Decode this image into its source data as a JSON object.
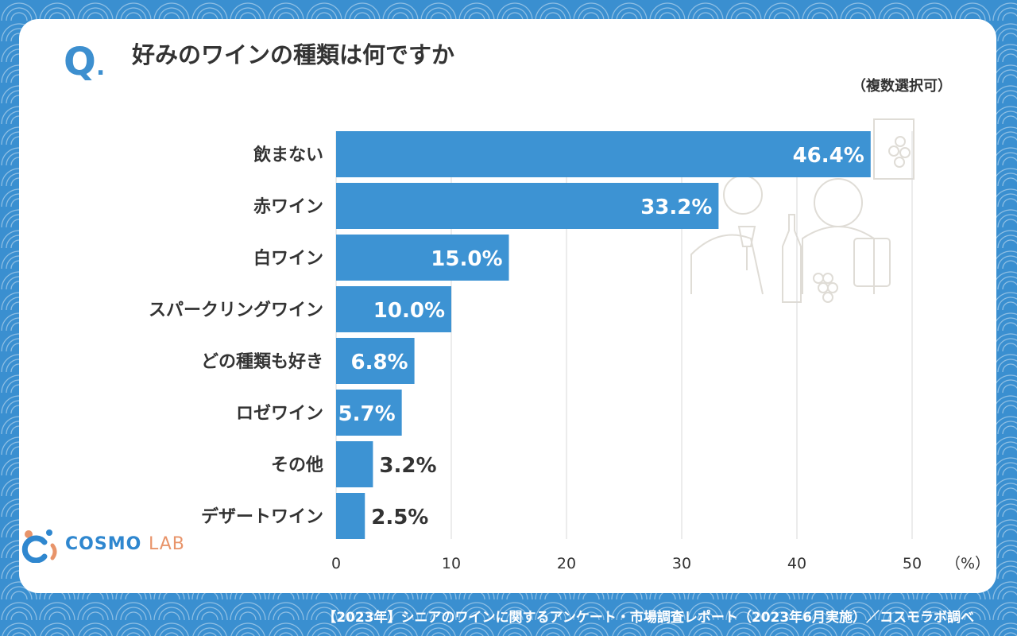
{
  "question": {
    "mark": "Q",
    "dot": ".",
    "text": "好みのワインの種類は何ですか"
  },
  "note": "（複数選択可）",
  "footer": "【2023年】シニアのワインに関するアンケート・市場調査レポート（2023年6月実施）／コスモラボ調べ",
  "logo": {
    "cosmo": "COSMO",
    "lab": "LAB"
  },
  "colors": {
    "bar": "#3d93d3",
    "grid": "#d9d9d9",
    "label": "#333333",
    "background": "#3a8fd0"
  },
  "chart_data": {
    "type": "bar",
    "orientation": "horizontal",
    "title": "好みのワインの種類は何ですか",
    "categories": [
      "飲まない",
      "赤ワイン",
      "白ワイン",
      "スパークリングワイン",
      "どの種類も好き",
      "ロゼワイン",
      "その他",
      "デザートワイン"
    ],
    "values": [
      46.4,
      33.2,
      15.0,
      10.0,
      6.8,
      5.7,
      3.2,
      2.5
    ],
    "value_labels": [
      "46.4%",
      "33.2%",
      "15.0%",
      "10.0%",
      "6.8%",
      "5.7%",
      "3.2%",
      "2.5%"
    ],
    "xlim": [
      0,
      50
    ],
    "xticks": [
      0,
      10,
      20,
      30,
      40,
      50
    ],
    "xunit": "（%）",
    "grid": true,
    "legend": "none"
  }
}
